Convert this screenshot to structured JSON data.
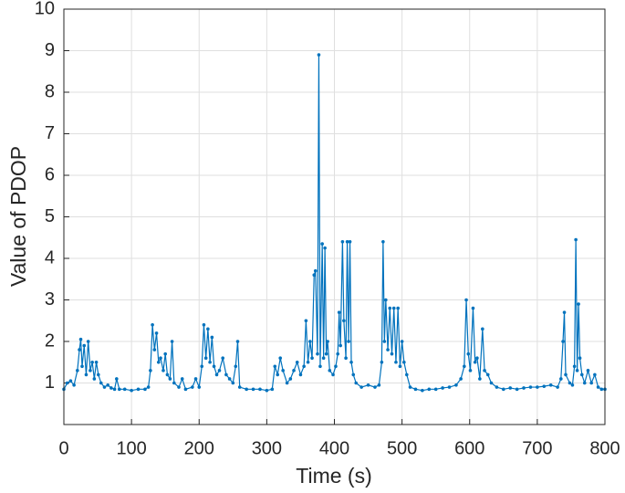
{
  "chart_data": {
    "type": "line",
    "xlabel": "Time (s)",
    "ylabel": "Value of PDOP",
    "xlim": [
      0,
      800
    ],
    "ylim": [
      0,
      10
    ],
    "xticks": [
      0,
      100,
      200,
      300,
      400,
      500,
      600,
      700,
      800
    ],
    "yticks": [
      1,
      2,
      3,
      4,
      5,
      6,
      7,
      8,
      9,
      10
    ],
    "grid": true,
    "markers": true,
    "series": [
      {
        "color": "#0072bd",
        "x": [
          0,
          5,
          10,
          15,
          20,
          23,
          25,
          27,
          30,
          33,
          36,
          39,
          42,
          45,
          48,
          51,
          55,
          60,
          65,
          70,
          75,
          78,
          82,
          90,
          100,
          110,
          120,
          125,
          128,
          131,
          134,
          137,
          140,
          143,
          147,
          150,
          153,
          157,
          160,
          163,
          170,
          175,
          180,
          190,
          195,
          200,
          204,
          207,
          210,
          213,
          216,
          219,
          222,
          226,
          230,
          235,
          240,
          245,
          250,
          254,
          257,
          260,
          270,
          280,
          290,
          300,
          308,
          312,
          316,
          320,
          324,
          330,
          335,
          340,
          345,
          350,
          355,
          358,
          361,
          364,
          367,
          370,
          372,
          375,
          377,
          379,
          382,
          384,
          386,
          388,
          390,
          393,
          398,
          402,
          405,
          407,
          409,
          412,
          414,
          417,
          419,
          421,
          423,
          425,
          428,
          432,
          440,
          450,
          460,
          466,
          470,
          472,
          474,
          476,
          479,
          482,
          485,
          488,
          491,
          494,
          497,
          500,
          503,
          507,
          512,
          520,
          530,
          540,
          550,
          560,
          570,
          580,
          587,
          592,
          595,
          598,
          601,
          605,
          608,
          611,
          615,
          619,
          622,
          627,
          632,
          640,
          650,
          660,
          670,
          680,
          690,
          700,
          710,
          720,
          730,
          735,
          738,
          740,
          742,
          748,
          752,
          755,
          757,
          759,
          761,
          763,
          766,
          770,
          775,
          780,
          785,
          790,
          795,
          800
        ],
        "values": [
          0.85,
          1.0,
          1.05,
          0.95,
          1.3,
          1.8,
          2.05,
          1.4,
          1.9,
          1.2,
          2.0,
          1.3,
          1.5,
          1.1,
          1.5,
          1.2,
          1.0,
          0.9,
          0.95,
          0.88,
          0.85,
          1.1,
          0.85,
          0.85,
          0.82,
          0.85,
          0.85,
          0.9,
          1.3,
          2.4,
          1.8,
          2.2,
          1.5,
          1.6,
          1.3,
          1.7,
          1.2,
          1.1,
          2.0,
          1.0,
          0.9,
          1.1,
          0.85,
          0.9,
          1.1,
          0.9,
          1.4,
          2.4,
          1.6,
          2.3,
          1.5,
          2.1,
          1.4,
          1.2,
          1.3,
          1.6,
          1.2,
          1.1,
          1.0,
          1.4,
          2.0,
          0.9,
          0.85,
          0.85,
          0.85,
          0.82,
          0.85,
          1.4,
          1.2,
          1.6,
          1.3,
          1.0,
          1.1,
          1.3,
          1.5,
          1.2,
          1.4,
          2.5,
          1.5,
          2.0,
          1.6,
          3.6,
          3.7,
          1.7,
          8.9,
          1.4,
          4.35,
          1.6,
          4.25,
          1.7,
          2.0,
          1.3,
          1.2,
          1.4,
          1.7,
          2.7,
          1.9,
          4.4,
          2.5,
          1.6,
          4.4,
          2.0,
          4.4,
          1.5,
          1.2,
          1.0,
          0.9,
          0.95,
          0.9,
          0.95,
          1.5,
          4.4,
          2.0,
          3.0,
          1.8,
          2.8,
          1.7,
          2.8,
          1.5,
          2.8,
          1.4,
          2.0,
          1.5,
          1.2,
          0.9,
          0.85,
          0.82,
          0.85,
          0.85,
          0.88,
          0.9,
          0.95,
          1.1,
          1.4,
          3.0,
          1.7,
          1.3,
          2.8,
          1.5,
          1.6,
          1.1,
          2.3,
          1.3,
          1.2,
          1.0,
          0.9,
          0.85,
          0.88,
          0.85,
          0.88,
          0.9,
          0.9,
          0.92,
          0.95,
          0.9,
          1.1,
          2.0,
          2.7,
          1.2,
          1.0,
          0.95,
          1.4,
          4.45,
          1.3,
          2.9,
          1.6,
          1.2,
          1.0,
          1.3,
          1.0,
          1.2,
          0.9,
          0.85,
          0.85
        ]
      }
    ]
  }
}
